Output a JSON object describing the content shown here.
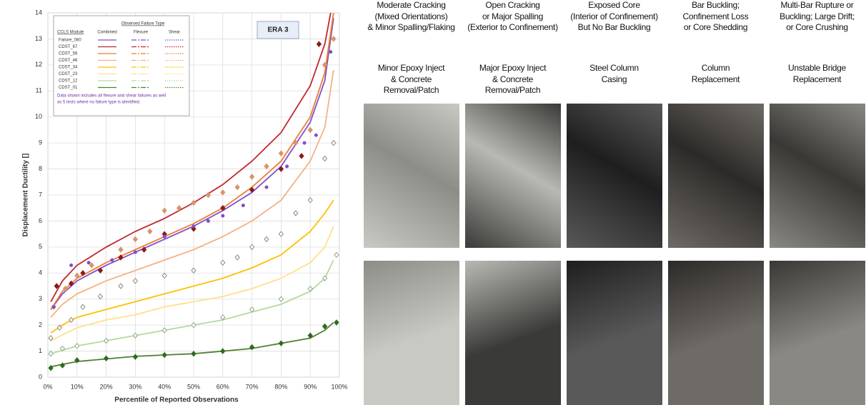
{
  "chart_data": {
    "type": "line",
    "annotation": "ERA 3",
    "note": [
      "Data shown includes all flexure and shear failures as well",
      "as 5 tests where no failure type is identified."
    ],
    "legend": {
      "title": "Observed Failure Type",
      "module_header": "CCLS Module",
      "columns": [
        "Combined",
        "Flexure",
        "Shear"
      ]
    },
    "xlabel": "Percentile of Reported Observations",
    "ylabel": "Displacement Ductility []",
    "xlim": [
      0,
      100
    ],
    "xticks": [
      {
        "value": 0,
        "label": "0%"
      },
      {
        "value": 10,
        "label": "10%"
      },
      {
        "value": 20,
        "label": "20%"
      },
      {
        "value": 30,
        "label": "30%"
      },
      {
        "value": 40,
        "label": "40%"
      },
      {
        "value": 50,
        "label": "50%"
      },
      {
        "value": 60,
        "label": "60%"
      },
      {
        "value": 70,
        "label": "70%"
      },
      {
        "value": 80,
        "label": "80%"
      },
      {
        "value": 90,
        "label": "90%"
      },
      {
        "value": 100,
        "label": "100%"
      }
    ],
    "ylim": [
      0,
      14
    ],
    "yticks": [
      0,
      1,
      2,
      3,
      4,
      5,
      6,
      7,
      8,
      9,
      10,
      11,
      12,
      13,
      14
    ],
    "grid": true,
    "series": [
      {
        "name": "Failure_080",
        "color": "#7f4fc9",
        "style": "line",
        "x": [
          1,
          5,
          10,
          20,
          30,
          40,
          50,
          60,
          70,
          80,
          90,
          95,
          98
        ],
        "values": [
          2.6,
          3.2,
          3.7,
          4.3,
          4.8,
          5.3,
          5.8,
          6.4,
          7.1,
          8.1,
          9.8,
          11.4,
          13.8
        ]
      },
      {
        "name": "CDST_67",
        "color": "#c0272d",
        "style": "line",
        "x": [
          1,
          5,
          10,
          20,
          30,
          40,
          50,
          60,
          70,
          80,
          90,
          95,
          97
        ],
        "values": [
          2.9,
          3.7,
          4.3,
          5.0,
          5.6,
          6.1,
          6.7,
          7.4,
          8.3,
          9.4,
          11.2,
          12.8,
          14
        ]
      },
      {
        "name": "CDST_56",
        "color": "#ed7d31",
        "style": "line",
        "x": [
          1,
          5,
          10,
          20,
          30,
          40,
          50,
          60,
          70,
          80,
          90,
          95,
          98
        ],
        "values": [
          2.6,
          3.3,
          3.8,
          4.4,
          4.9,
          5.4,
          5.9,
          6.5,
          7.3,
          8.3,
          10.0,
          11.7,
          14
        ]
      },
      {
        "name": "CDST_46",
        "color": "#f4b183",
        "style": "line",
        "x": [
          1,
          5,
          10,
          20,
          30,
          40,
          50,
          60,
          70,
          80,
          90,
          95,
          98
        ],
        "values": [
          2.3,
          2.8,
          3.2,
          3.7,
          4.1,
          4.5,
          4.9,
          5.4,
          6.0,
          6.8,
          8.3,
          9.6,
          11.8
        ]
      },
      {
        "name": "CDST_34",
        "color": "#ffc000",
        "style": "line",
        "x": [
          1,
          5,
          10,
          20,
          30,
          40,
          50,
          60,
          70,
          80,
          90,
          95,
          98
        ],
        "values": [
          1.7,
          2.0,
          2.3,
          2.6,
          2.9,
          3.2,
          3.5,
          3.8,
          4.2,
          4.7,
          5.6,
          6.3,
          6.8
        ]
      },
      {
        "name": "CDST_23",
        "color": "#ffe08a",
        "style": "line",
        "x": [
          1,
          10,
          20,
          30,
          40,
          50,
          60,
          70,
          80,
          90,
          95,
          98
        ],
        "values": [
          1.4,
          1.9,
          2.2,
          2.4,
          2.7,
          2.9,
          3.1,
          3.4,
          3.8,
          4.4,
          5.0,
          5.8
        ]
      },
      {
        "name": "CDST_12",
        "color": "#b5d99c",
        "style": "line",
        "x": [
          1,
          10,
          20,
          30,
          40,
          50,
          60,
          70,
          80,
          90,
          95,
          98
        ],
        "values": [
          0.9,
          1.2,
          1.4,
          1.6,
          1.8,
          2.0,
          2.2,
          2.5,
          2.8,
          3.3,
          3.8,
          4.5
        ]
      },
      {
        "name": "CDST_01",
        "color": "#4e7f2e",
        "style": "line",
        "x": [
          1,
          10,
          20,
          30,
          40,
          50,
          60,
          70,
          80,
          90,
          95,
          98
        ],
        "values": [
          0.4,
          0.6,
          0.7,
          0.8,
          0.85,
          0.9,
          1.0,
          1.1,
          1.3,
          1.5,
          1.8,
          2.1
        ]
      },
      {
        "color": "#d9956a",
        "style": "points",
        "marker": "diamond",
        "filled": true,
        "x": [
          2,
          6,
          10,
          15,
          25,
          30,
          35,
          40,
          45,
          50,
          55,
          60,
          65,
          70,
          75,
          80,
          85,
          90,
          95,
          98
        ],
        "values": [
          2.7,
          3.4,
          3.9,
          4.3,
          4.9,
          5.3,
          5.6,
          6.4,
          6.5,
          6.7,
          7.0,
          7.1,
          7.3,
          7.7,
          8.1,
          8.6,
          9.0,
          9.5,
          12.0,
          13.0
        ]
      },
      {
        "color": "#8b1a1a",
        "style": "points",
        "marker": "diamond",
        "filled": true,
        "x": [
          3,
          8,
          12,
          18,
          25,
          33,
          40,
          50,
          60,
          70,
          80,
          87,
          93
        ],
        "values": [
          3.5,
          3.6,
          4.0,
          4.1,
          4.6,
          4.9,
          5.5,
          5.7,
          6.5,
          7.2,
          8.0,
          8.5,
          12.8
        ]
      },
      {
        "color": "#7f4fc9",
        "style": "points",
        "marker": "circle",
        "filled": true,
        "x": [
          2,
          8,
          14,
          22,
          30,
          40,
          50,
          55,
          60,
          67,
          75,
          82,
          88,
          92,
          97
        ],
        "values": [
          2.7,
          4.3,
          4.4,
          4.5,
          4.8,
          5.4,
          5.8,
          6.0,
          6.2,
          6.6,
          7.3,
          8.1,
          9.0,
          9.3,
          12.5
        ]
      },
      {
        "color": "#8a8a7a",
        "style": "points",
        "marker": "diamond",
        "filled": false,
        "x": [
          1,
          4,
          8,
          12,
          18,
          25,
          30,
          40,
          50,
          60,
          65,
          70,
          75,
          80,
          85,
          90,
          95,
          98
        ],
        "values": [
          1.5,
          1.9,
          2.2,
          2.7,
          3.1,
          3.5,
          3.7,
          3.9,
          4.1,
          4.4,
          4.6,
          5.0,
          5.3,
          5.5,
          6.3,
          6.8,
          8.4,
          9
        ]
      },
      {
        "color": "#8fa38a",
        "style": "points",
        "marker": "diamond",
        "filled": false,
        "x": [
          1,
          5,
          10,
          20,
          30,
          40,
          50,
          60,
          70,
          80,
          90,
          95,
          99
        ],
        "values": [
          0.9,
          1.1,
          1.2,
          1.4,
          1.6,
          1.8,
          2.0,
          2.3,
          2.6,
          3.0,
          3.4,
          3.8,
          4.7
        ]
      },
      {
        "color": "#2f6b1e",
        "style": "points",
        "marker": "diamond",
        "filled": true,
        "x": [
          1,
          5,
          10,
          20,
          30,
          40,
          50,
          60,
          70,
          80,
          90,
          95,
          99
        ],
        "values": [
          0.35,
          0.45,
          0.65,
          0.72,
          0.78,
          0.85,
          0.9,
          1.0,
          1.15,
          1.3,
          1.6,
          1.95,
          2.1
        ]
      }
    ]
  },
  "damage_states": [
    {
      "description": [
        "Moderate Cracking",
        "(Mixed Orientations)",
        "& Minor Spalling/Flaking"
      ],
      "repair": [
        "Minor Epoxy Inject",
        "& Concrete",
        "Removal/Patch"
      ]
    },
    {
      "description": [
        "Open Cracking",
        "or Major Spalling",
        "(Exterior to Confinement)"
      ],
      "repair": [
        "Major Epoxy Inject",
        "& Concrete",
        "Removal/Patch"
      ]
    },
    {
      "description": [
        "Exposed Core",
        "(Interior of Confinement)",
        "But No Bar Buckling"
      ],
      "repair": [
        "Steel Column",
        "Casing"
      ]
    },
    {
      "description": [
        "Bar Buckling;",
        "Confinement Loss",
        "or Core Shedding"
      ],
      "repair": [
        "Column",
        "Replacement"
      ]
    },
    {
      "description": [
        "Multi-Bar Rupture or",
        "Buckling; Large Drift;",
        "or Core Crushing"
      ],
      "repair": [
        "Unstable Bridge",
        "Replacement"
      ]
    }
  ]
}
